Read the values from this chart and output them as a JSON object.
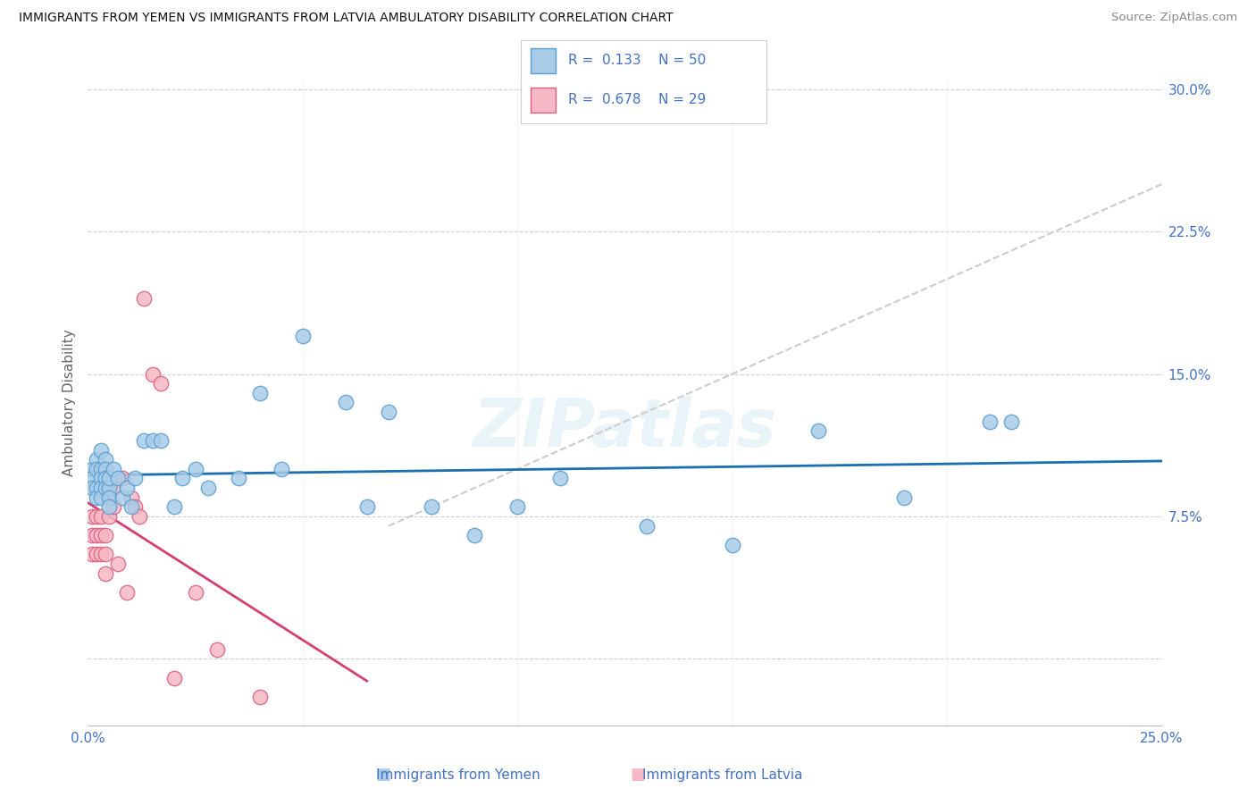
{
  "title": "IMMIGRANTS FROM YEMEN VS IMMIGRANTS FROM LATVIA AMBULATORY DISABILITY CORRELATION CHART",
  "source": "Source: ZipAtlas.com",
  "ylabel": "Ambulatory Disability",
  "xlim": [
    0.0,
    0.25
  ],
  "ylim": [
    -0.035,
    0.305
  ],
  "yemen_fill": "#a8cce8",
  "yemen_edge": "#5b9ecf",
  "latvia_fill": "#f5b8c4",
  "latvia_edge": "#d96080",
  "reg_yemen": "#1a6faf",
  "reg_latvia": "#d44070",
  "diag_color": "#cccccc",
  "grid_color": "#d0d0d0",
  "tick_color": "#4472c4",
  "R_yemen": 0.133,
  "N_yemen": 50,
  "R_latvia": 0.678,
  "N_latvia": 29,
  "yemen_x": [
    0.001,
    0.001,
    0.001,
    0.002,
    0.002,
    0.002,
    0.002,
    0.003,
    0.003,
    0.003,
    0.003,
    0.003,
    0.004,
    0.004,
    0.004,
    0.004,
    0.005,
    0.005,
    0.005,
    0.005,
    0.006,
    0.007,
    0.008,
    0.009,
    0.01,
    0.011,
    0.013,
    0.015,
    0.017,
    0.02,
    0.022,
    0.025,
    0.028,
    0.035,
    0.04,
    0.045,
    0.05,
    0.06,
    0.065,
    0.07,
    0.08,
    0.09,
    0.1,
    0.11,
    0.13,
    0.15,
    0.17,
    0.19,
    0.21,
    0.215
  ],
  "yemen_y": [
    0.1,
    0.095,
    0.09,
    0.105,
    0.1,
    0.09,
    0.085,
    0.11,
    0.1,
    0.095,
    0.09,
    0.085,
    0.105,
    0.1,
    0.095,
    0.09,
    0.09,
    0.085,
    0.08,
    0.095,
    0.1,
    0.095,
    0.085,
    0.09,
    0.08,
    0.095,
    0.115,
    0.115,
    0.115,
    0.08,
    0.095,
    0.1,
    0.09,
    0.095,
    0.14,
    0.1,
    0.17,
    0.135,
    0.08,
    0.13,
    0.08,
    0.065,
    0.08,
    0.095,
    0.07,
    0.06,
    0.12,
    0.085,
    0.125,
    0.125
  ],
  "latvia_x": [
    0.001,
    0.001,
    0.001,
    0.002,
    0.002,
    0.002,
    0.003,
    0.003,
    0.003,
    0.004,
    0.004,
    0.004,
    0.005,
    0.005,
    0.006,
    0.006,
    0.007,
    0.008,
    0.009,
    0.01,
    0.011,
    0.012,
    0.013,
    0.015,
    0.017,
    0.02,
    0.025,
    0.03,
    0.04
  ],
  "latvia_y": [
    0.075,
    0.065,
    0.055,
    0.075,
    0.065,
    0.055,
    0.075,
    0.065,
    0.055,
    0.065,
    0.055,
    0.045,
    0.085,
    0.075,
    0.09,
    0.08,
    0.05,
    0.095,
    0.035,
    0.085,
    0.08,
    0.075,
    0.19,
    0.15,
    0.145,
    -0.01,
    0.035,
    0.005,
    -0.02
  ]
}
